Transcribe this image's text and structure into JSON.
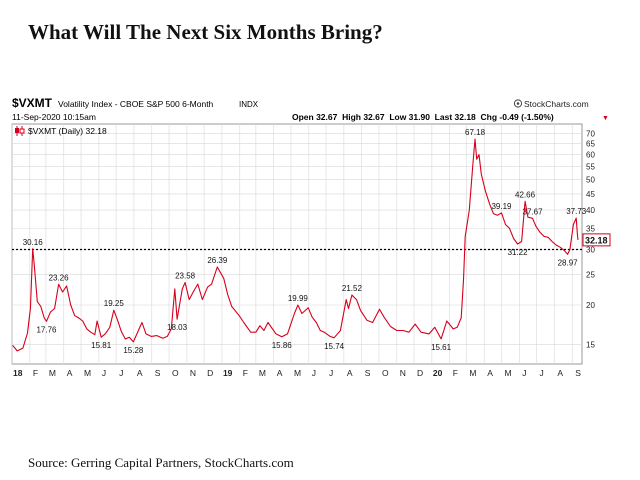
{
  "page": {
    "title": "What Will The Next Six Months Bring?",
    "source": "Source: Gerring Capital Partners, StockCharts.com"
  },
  "header": {
    "symbol": "$VXMT",
    "description": "Volatility Index - CBOE S&P 500 6-Month",
    "exchange": "INDX",
    "brand": "StockCharts.com",
    "brand_icon": "stockcharts-logo-icon",
    "datetime": "11-Sep-2020 10:15am",
    "quote": "Open 32.67  High 32.67  Low 31.90  Last 32.18  Chg -0.49 (-1.50%)",
    "change_arrow": "▼",
    "legend": "$VXMT (Daily) 32.18",
    "legend_icon": "candlestick-icon"
  },
  "colors": {
    "series": "#d6001c",
    "grid": "#d8d8d8",
    "reference_line": "#000000",
    "last_badge": "#d6001c"
  },
  "chart_data": {
    "type": "line",
    "scale": "log",
    "ylim": [
      13,
      75
    ],
    "y_ticks": [
      15,
      20,
      25,
      30,
      35,
      40,
      45,
      50,
      55,
      60,
      65,
      70
    ],
    "x_ticks": [
      "18",
      "F",
      "M",
      "A",
      "M",
      "J",
      "J",
      "A",
      "S",
      "O",
      "N",
      "D",
      "19",
      "F",
      "M",
      "A",
      "M",
      "J",
      "J",
      "A",
      "S",
      "O",
      "N",
      "D",
      "20",
      "F",
      "M",
      "A",
      "M",
      "J",
      "J",
      "A",
      "S"
    ],
    "grid": true,
    "reference_line": 30,
    "last_value": "32.18",
    "series": [
      {
        "values": [
          [
            "2018-01-02",
            14.9
          ],
          [
            "2018-01-10",
            14.3
          ],
          [
            "2018-01-20",
            14.6
          ],
          [
            "2018-01-28",
            16.3
          ],
          [
            "2018-02-02",
            19.5
          ],
          [
            "2018-02-06",
            30.16
          ],
          [
            "2018-02-09",
            26.5
          ],
          [
            "2018-02-14",
            20.5
          ],
          [
            "2018-02-20",
            19.8
          ],
          [
            "2018-02-26",
            18.2
          ],
          [
            "2018-03-02",
            17.76
          ],
          [
            "2018-03-09",
            19.0
          ],
          [
            "2018-03-16",
            19.5
          ],
          [
            "2018-03-23",
            23.26
          ],
          [
            "2018-03-30",
            22.0
          ],
          [
            "2018-04-06",
            23.0
          ],
          [
            "2018-04-13",
            20.0
          ],
          [
            "2018-04-20",
            18.5
          ],
          [
            "2018-04-27",
            18.2
          ],
          [
            "2018-05-04",
            17.8
          ],
          [
            "2018-05-11",
            16.8
          ],
          [
            "2018-05-18",
            16.4
          ],
          [
            "2018-05-25",
            16.1
          ],
          [
            "2018-05-29",
            17.8
          ],
          [
            "2018-06-05",
            15.81
          ],
          [
            "2018-06-12",
            16.2
          ],
          [
            "2018-06-20",
            17.0
          ],
          [
            "2018-06-27",
            19.25
          ],
          [
            "2018-07-03",
            18.0
          ],
          [
            "2018-07-10",
            16.5
          ],
          [
            "2018-07-17",
            15.6
          ],
          [
            "2018-07-24",
            15.8
          ],
          [
            "2018-07-31",
            15.28
          ],
          [
            "2018-08-10",
            16.8
          ],
          [
            "2018-08-15",
            17.6
          ],
          [
            "2018-08-22",
            16.2
          ],
          [
            "2018-08-31",
            15.9
          ],
          [
            "2018-09-10",
            16.0
          ],
          [
            "2018-09-20",
            15.7
          ],
          [
            "2018-09-28",
            15.9
          ],
          [
            "2018-10-05",
            16.8
          ],
          [
            "2018-10-11",
            22.5
          ],
          [
            "2018-10-15",
            18.03
          ],
          [
            "2018-10-24",
            22.5
          ],
          [
            "2018-10-29",
            23.58
          ],
          [
            "2018-11-05",
            20.8
          ],
          [
            "2018-11-12",
            22.0
          ],
          [
            "2018-11-20",
            23.3
          ],
          [
            "2018-11-28",
            20.8
          ],
          [
            "2018-12-07",
            22.8
          ],
          [
            "2018-12-14",
            23.3
          ],
          [
            "2018-12-24",
            26.39
          ],
          [
            "2019-01-04",
            24.3
          ],
          [
            "2019-01-11",
            21.6
          ],
          [
            "2019-01-18",
            19.8
          ],
          [
            "2019-01-31",
            18.5
          ],
          [
            "2019-02-08",
            17.6
          ],
          [
            "2019-02-20",
            16.4
          ],
          [
            "2019-03-01",
            16.4
          ],
          [
            "2019-03-08",
            17.2
          ],
          [
            "2019-03-15",
            16.6
          ],
          [
            "2019-03-22",
            17.6
          ],
          [
            "2019-04-05",
            16.2
          ],
          [
            "2019-04-15",
            15.86
          ],
          [
            "2019-04-25",
            16.2
          ],
          [
            "2019-05-07",
            18.8
          ],
          [
            "2019-05-13",
            19.99
          ],
          [
            "2019-05-20",
            18.8
          ],
          [
            "2019-05-31",
            19.6
          ],
          [
            "2019-06-07",
            18.3
          ],
          [
            "2019-06-14",
            17.6
          ],
          [
            "2019-06-21",
            16.6
          ],
          [
            "2019-06-28",
            16.4
          ],
          [
            "2019-07-08",
            15.9
          ],
          [
            "2019-07-15",
            15.74
          ],
          [
            "2019-07-26",
            16.6
          ],
          [
            "2019-08-05",
            20.8
          ],
          [
            "2019-08-09",
            19.5
          ],
          [
            "2019-08-15",
            21.52
          ],
          [
            "2019-08-23",
            20.8
          ],
          [
            "2019-08-30",
            19.2
          ],
          [
            "2019-09-10",
            17.9
          ],
          [
            "2019-09-20",
            17.6
          ],
          [
            "2019-10-02",
            19.4
          ],
          [
            "2019-10-10",
            18.3
          ],
          [
            "2019-10-21",
            17.1
          ],
          [
            "2019-11-01",
            16.6
          ],
          [
            "2019-11-12",
            16.6
          ],
          [
            "2019-11-22",
            16.4
          ],
          [
            "2019-12-03",
            17.4
          ],
          [
            "2019-12-13",
            16.4
          ],
          [
            "2019-12-27",
            16.2
          ],
          [
            "2020-01-06",
            17.0
          ],
          [
            "2020-01-17",
            15.61
          ],
          [
            "2020-01-27",
            17.8
          ],
          [
            "2020-02-07",
            16.8
          ],
          [
            "2020-02-14",
            17.0
          ],
          [
            "2020-02-21",
            18.2
          ],
          [
            "2020-02-25",
            24.0
          ],
          [
            "2020-02-28",
            33.0
          ],
          [
            "2020-03-06",
            40.0
          ],
          [
            "2020-03-12",
            55.0
          ],
          [
            "2020-03-16",
            67.18
          ],
          [
            "2020-03-19",
            58.0
          ],
          [
            "2020-03-23",
            60.0
          ],
          [
            "2020-03-27",
            52.0
          ],
          [
            "2020-04-03",
            46.0
          ],
          [
            "2020-04-10",
            42.0
          ],
          [
            "2020-04-17",
            39.0
          ],
          [
            "2020-04-24",
            38.5
          ],
          [
            "2020-05-01",
            39.19
          ],
          [
            "2020-05-08",
            36.0
          ],
          [
            "2020-05-15",
            35.0
          ],
          [
            "2020-05-22",
            32.5
          ],
          [
            "2020-05-29",
            31.22
          ],
          [
            "2020-06-05",
            31.8
          ],
          [
            "2020-06-11",
            42.66
          ],
          [
            "2020-06-16",
            38.0
          ],
          [
            "2020-06-24",
            37.67
          ],
          [
            "2020-06-30",
            35.5
          ],
          [
            "2020-07-07",
            34.0
          ],
          [
            "2020-07-14",
            33.0
          ],
          [
            "2020-07-21",
            32.8
          ],
          [
            "2020-07-28",
            31.8
          ],
          [
            "2020-08-04",
            31.0
          ],
          [
            "2020-08-11",
            30.5
          ],
          [
            "2020-08-18",
            29.8
          ],
          [
            "2020-08-24",
            28.97
          ],
          [
            "2020-08-28",
            30.0
          ],
          [
            "2020-09-03",
            36.0
          ],
          [
            "2020-09-08",
            37.73
          ],
          [
            "2020-09-10",
            33.5
          ],
          [
            "2020-09-11",
            32.18
          ]
        ]
      }
    ],
    "annotations": [
      {
        "date": "2018-02-06",
        "value": 30.16,
        "label": "30.16",
        "pos": "above"
      },
      {
        "date": "2018-03-23",
        "value": 23.26,
        "label": "23.26",
        "pos": "above"
      },
      {
        "date": "2018-03-02",
        "value": 17.76,
        "label": "17.76",
        "pos": "below"
      },
      {
        "date": "2018-06-05",
        "value": 15.81,
        "label": "15.81",
        "pos": "below"
      },
      {
        "date": "2018-06-27",
        "value": 19.25,
        "label": "19.25",
        "pos": "above"
      },
      {
        "date": "2018-07-31",
        "value": 15.28,
        "label": "15.28",
        "pos": "below"
      },
      {
        "date": "2018-10-15",
        "value": 18.03,
        "label": "18.03",
        "pos": "below"
      },
      {
        "date": "2018-10-29",
        "value": 23.58,
        "label": "23.58",
        "pos": "above"
      },
      {
        "date": "2018-12-24",
        "value": 26.39,
        "label": "26.39",
        "pos": "above"
      },
      {
        "date": "2019-04-15",
        "value": 15.86,
        "label": "15.86",
        "pos": "below"
      },
      {
        "date": "2019-05-13",
        "value": 19.99,
        "label": "19.99",
        "pos": "above"
      },
      {
        "date": "2019-07-15",
        "value": 15.74,
        "label": "15.74",
        "pos": "below"
      },
      {
        "date": "2019-08-15",
        "value": 21.52,
        "label": "21.52",
        "pos": "above"
      },
      {
        "date": "2020-01-17",
        "value": 15.61,
        "label": "15.61",
        "pos": "below"
      },
      {
        "date": "2020-03-16",
        "value": 67.18,
        "label": "67.18",
        "pos": "above"
      },
      {
        "date": "2020-05-01",
        "value": 39.19,
        "label": "39.19",
        "pos": "above"
      },
      {
        "date": "2020-05-29",
        "value": 31.22,
        "label": "31.22",
        "pos": "below"
      },
      {
        "date": "2020-06-11",
        "value": 42.66,
        "label": "42.66",
        "pos": "above"
      },
      {
        "date": "2020-06-24",
        "value": 37.67,
        "label": "37.67",
        "pos": "above"
      },
      {
        "date": "2020-08-24",
        "value": 28.97,
        "label": "28.97",
        "pos": "below"
      },
      {
        "date": "2020-09-08",
        "value": 37.73,
        "label": "37.73",
        "pos": "above"
      }
    ]
  }
}
